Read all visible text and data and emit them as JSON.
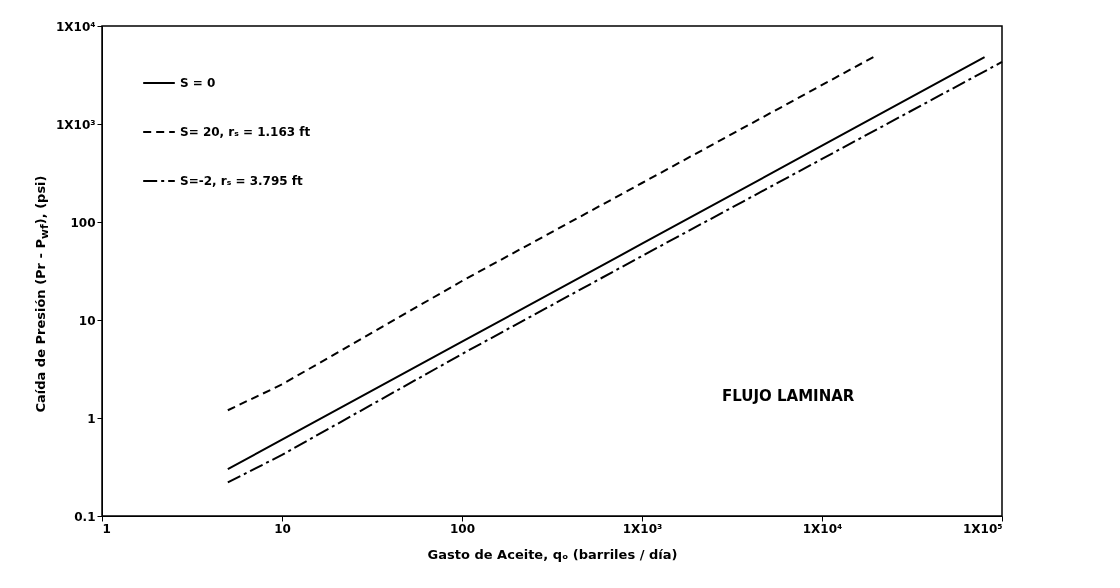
{
  "chart_data": {
    "type": "line",
    "xlabel": "Gasto de Aceite, qₒ (barriles / día)",
    "ylabel": "Caída de Presión (Pr - P$_{wf}$), (psi)",
    "log": "xy",
    "grid": false,
    "legend": "top left",
    "marker": "none",
    "xlim": [
      1,
      100000
    ],
    "xticks": [
      1,
      10,
      100,
      {
        "value": 1000,
        "label": "1X10³"
      },
      {
        "value": 10000,
        "label": "1X10⁴"
      },
      {
        "value": 100000,
        "label": "1X10⁵"
      }
    ],
    "ylim": [
      0.1,
      10000
    ],
    "yticks": [
      0.1,
      1,
      10,
      100,
      {
        "value": 1000,
        "label": "1X10³"
      },
      {
        "value": 10000,
        "label": "1X10⁴"
      }
    ],
    "annotations": [
      "FLUJO LAMINAR"
    ],
    "series": [
      {
        "name": "S = 0",
        "color": "#000000",
        "line_style": "solid",
        "x": [
          5,
          10,
          100,
          1000,
          10000,
          80000
        ],
        "values": [
          0.3,
          0.6,
          6,
          60,
          600,
          4800
        ]
      },
      {
        "name": "S= 20, rₛ = 1.163 ft",
        "color": "#000000",
        "line_style": "dashed",
        "x": [
          5,
          10,
          100,
          1000,
          20000
        ],
        "values": [
          1.2,
          2.2,
          25,
          250,
          5000
        ]
      },
      {
        "name": "S=-2, rₛ = 3.795 ft",
        "color": "#000000",
        "line_style": "dotted",
        "x": [
          5,
          10,
          100,
          1000,
          100000
        ],
        "values": [
          0.22,
          0.42,
          4.5,
          45,
          4300
        ]
      }
    ]
  }
}
